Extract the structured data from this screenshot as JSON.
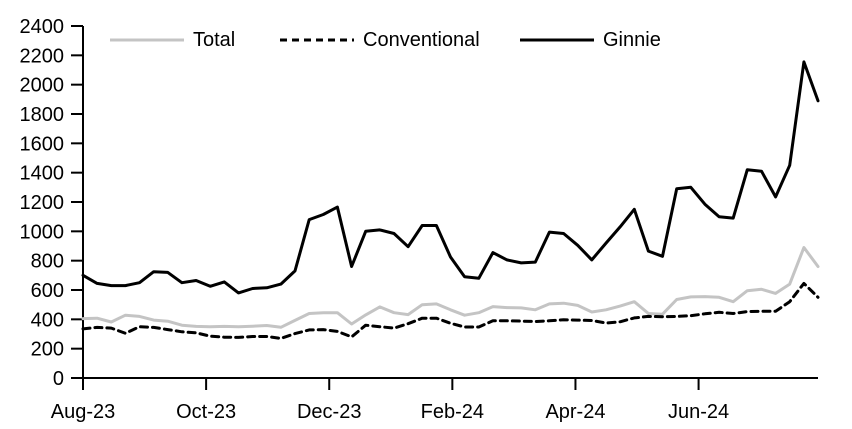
{
  "chart_data": {
    "type": "line",
    "title": "",
    "grid": false,
    "legend_position": "top",
    "x_axis": {
      "span_months": 11.94,
      "ticks": [
        {
          "label": "Aug-23",
          "month": 0
        },
        {
          "label": "Oct-23",
          "month": 2
        },
        {
          "label": "Dec-23",
          "month": 4
        },
        {
          "label": "Feb-24",
          "month": 6
        },
        {
          "label": "Apr-24",
          "month": 8
        },
        {
          "label": "Jun-24",
          "month": 10
        }
      ]
    },
    "y_axis": {
      "min": 0,
      "max": 2400,
      "tick_step": 200,
      "ticks": [
        0,
        200,
        400,
        600,
        800,
        1000,
        1200,
        1400,
        1600,
        1800,
        2000,
        2200,
        2400
      ]
    },
    "series": [
      {
        "name": "Total",
        "color": "#c4c4c4",
        "dash": "none",
        "values": [
          405,
          408,
          382,
          428,
          420,
          395,
          387,
          360,
          352,
          350,
          352,
          350,
          353,
          358,
          346,
          393,
          440,
          445,
          445,
          368,
          430,
          485,
          445,
          432,
          500,
          505,
          465,
          428,
          445,
          487,
          480,
          478,
          465,
          505,
          510,
          495,
          450,
          465,
          490,
          520,
          440,
          435,
          535,
          553,
          555,
          550,
          520,
          595,
          605,
          577,
          640,
          890,
          760
        ]
      },
      {
        "name": "Conventional",
        "color": "#000000",
        "dash": "7 5",
        "values": [
          335,
          345,
          340,
          305,
          350,
          345,
          330,
          315,
          308,
          285,
          278,
          277,
          283,
          283,
          270,
          303,
          328,
          330,
          318,
          280,
          360,
          350,
          340,
          370,
          408,
          408,
          373,
          348,
          348,
          390,
          390,
          388,
          385,
          390,
          397,
          395,
          392,
          375,
          383,
          410,
          420,
          418,
          420,
          425,
          438,
          448,
          440,
          453,
          455,
          455,
          520,
          645,
          550
        ]
      },
      {
        "name": "Ginnie",
        "color": "#000000",
        "dash": "none",
        "values": [
          700,
          645,
          630,
          630,
          650,
          725,
          720,
          650,
          665,
          625,
          655,
          580,
          610,
          615,
          640,
          730,
          1080,
          1115,
          1165,
          760,
          1000,
          1010,
          985,
          895,
          1040,
          1040,
          825,
          690,
          680,
          855,
          805,
          785,
          790,
          995,
          985,
          905,
          805,
          920,
          1030,
          1150,
          865,
          830,
          1290,
          1300,
          1185,
          1100,
          1090,
          1420,
          1410,
          1235,
          1450,
          2155,
          1890
        ]
      }
    ]
  }
}
